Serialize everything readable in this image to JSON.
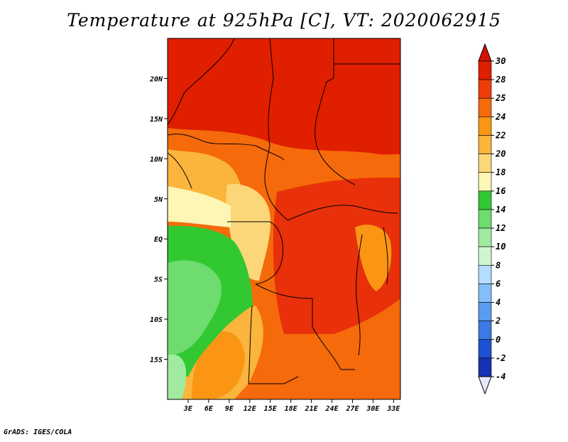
{
  "title": "Temperature at 925hPa [C], VT: 2020062915",
  "footer": "GrADS: IGES/COLA",
  "map": {
    "lon_range": [
      0,
      34
    ],
    "lat_range": [
      -20,
      25
    ],
    "lat_ticks": [
      {
        "value": 20,
        "label": "20N"
      },
      {
        "value": 15,
        "label": "15N"
      },
      {
        "value": 10,
        "label": "10N"
      },
      {
        "value": 5,
        "label": "5N"
      },
      {
        "value": 0,
        "label": "EQ"
      },
      {
        "value": -5,
        "label": "5S"
      },
      {
        "value": -10,
        "label": "10S"
      },
      {
        "value": -15,
        "label": "15S"
      }
    ],
    "lon_ticks": [
      {
        "value": 3,
        "label": "3E"
      },
      {
        "value": 6,
        "label": "6E"
      },
      {
        "value": 9,
        "label": "9E"
      },
      {
        "value": 12,
        "label": "12E"
      },
      {
        "value": 15,
        "label": "15E"
      },
      {
        "value": 18,
        "label": "18E"
      },
      {
        "value": 21,
        "label": "21E"
      },
      {
        "value": 24,
        "label": "24E"
      },
      {
        "value": 27,
        "label": "27E"
      },
      {
        "value": 30,
        "label": "30E"
      },
      {
        "value": 33,
        "label": "33E"
      }
    ]
  },
  "colorbar": {
    "levels": [
      {
        "label": "30",
        "color": "#e01e00"
      },
      {
        "label": "28",
        "color": "#f03c0c"
      },
      {
        "label": "25",
        "color": "#f56a0a"
      },
      {
        "label": "24",
        "color": "#fa9614"
      },
      {
        "label": "22",
        "color": "#fbb43c"
      },
      {
        "label": "20",
        "color": "#fcd77a"
      },
      {
        "label": "18",
        "color": "#fdf6b4"
      },
      {
        "label": "16",
        "color": "#32c832"
      },
      {
        "label": "14",
        "color": "#6edc6e"
      },
      {
        "label": "12",
        "color": "#a0eba0"
      },
      {
        "label": "10",
        "color": "#d0f6d0"
      },
      {
        "label": "8",
        "color": "#b4ddff"
      },
      {
        "label": "6",
        "color": "#82bef7"
      },
      {
        "label": "4",
        "color": "#5a9cf0"
      },
      {
        "label": "2",
        "color": "#3c78e6"
      },
      {
        "label": "0",
        "color": "#1e50d2"
      },
      {
        "label": "-2",
        "color": "#1432b4"
      },
      {
        "label": "-4",
        "color": "#0a1478"
      }
    ],
    "top_color": "#d21400",
    "bottom_color": "#e6e6fa"
  }
}
